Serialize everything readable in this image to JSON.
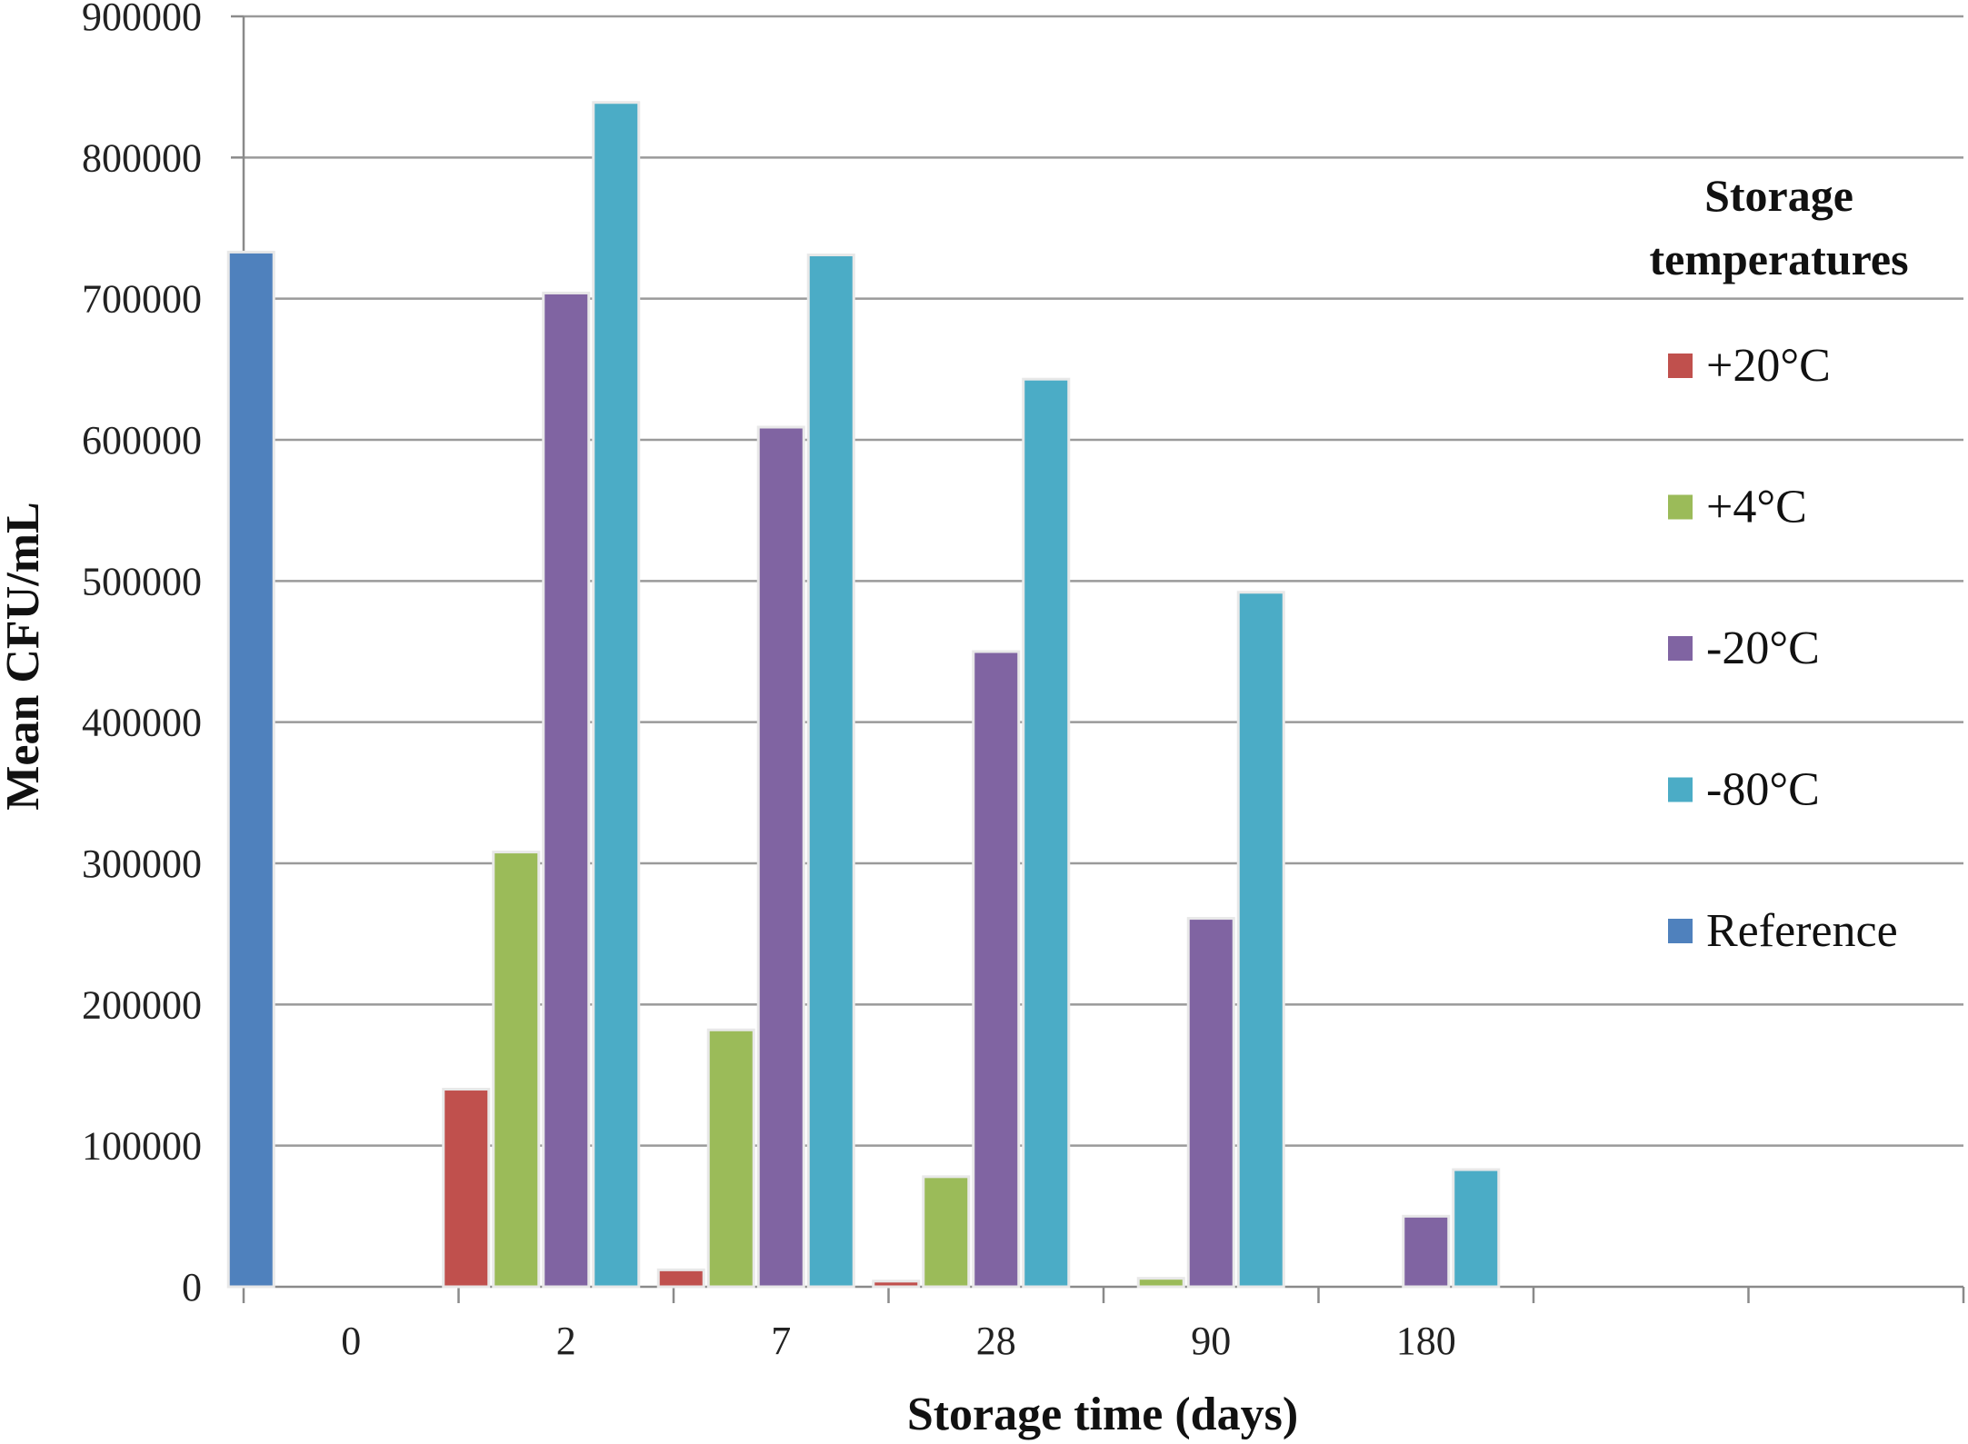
{
  "chart_data": {
    "type": "bar",
    "xlabel": "Storage time (days)",
    "ylabel": "Mean CFU/mL",
    "ylim": [
      0,
      900000
    ],
    "y_ticks": [
      0,
      100000,
      200000,
      300000,
      400000,
      500000,
      600000,
      700000,
      800000,
      900000
    ],
    "y_tick_labels": [
      "0",
      "100000",
      "200000",
      "300000",
      "400000",
      "500000",
      "600000",
      "700000",
      "800000",
      "900000"
    ],
    "categories": [
      "0",
      "2",
      "7",
      "28",
      "90",
      "180",
      "",
      ""
    ],
    "grid": true,
    "legend": {
      "title": "Storage temperatures",
      "title_lines": [
        "Storage",
        "temperatures"
      ],
      "placement": "right"
    },
    "series": [
      {
        "name": "+20°C",
        "color": "#c0504d",
        "values": [
          null,
          140000,
          12000,
          4000,
          0,
          0,
          null,
          null
        ]
      },
      {
        "name": "+4°C",
        "color": "#9bbb59",
        "values": [
          null,
          308000,
          182000,
          78000,
          6000,
          0,
          null,
          null
        ]
      },
      {
        "name": "-20°C",
        "color": "#8064a2",
        "values": [
          null,
          704000,
          609000,
          450000,
          261000,
          50000,
          null,
          null
        ]
      },
      {
        "name": "-80°C",
        "color": "#4bacc6",
        "values": [
          null,
          839000,
          731000,
          643000,
          492000,
          83000,
          null,
          null
        ]
      },
      {
        "name": "Reference",
        "color": "#4f81bd",
        "values": [
          733000,
          null,
          null,
          null,
          null,
          null,
          null,
          null
        ]
      }
    ]
  }
}
